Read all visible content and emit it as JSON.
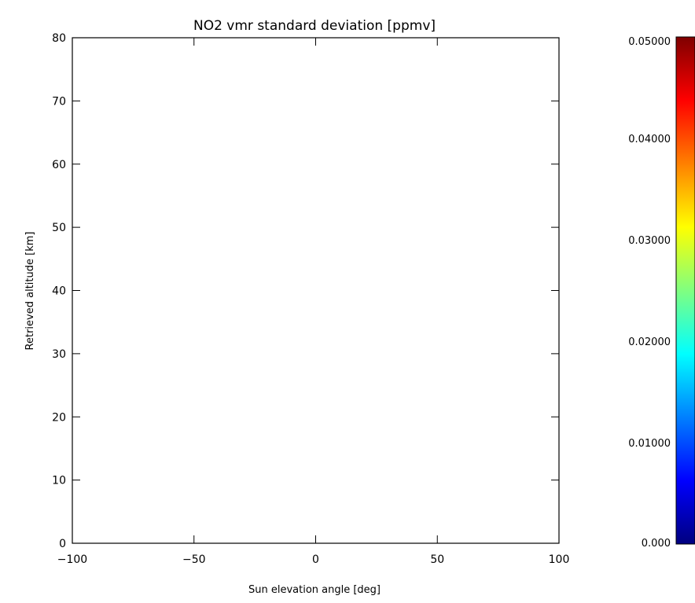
{
  "chart_data": {
    "type": "heatmap",
    "title": "NO2 vmr standard deviation [ppmv]",
    "xlabel": "Sun elevation angle [deg]",
    "ylabel": "Retrieved altitude [km]",
    "xlim": [
      -100,
      100
    ],
    "ylim": [
      0,
      80
    ],
    "xticks": [
      -100,
      -50,
      0,
      50,
      100
    ],
    "xtick_labels": [
      "−100",
      "−50",
      "0",
      "50",
      "100"
    ],
    "yticks": [
      0,
      10,
      20,
      30,
      40,
      50,
      60,
      70,
      80
    ],
    "ytick_labels": [
      "0",
      "10",
      "20",
      "30",
      "40",
      "50",
      "60",
      "70",
      "80"
    ],
    "values": [],
    "grid": false,
    "colorbar": {
      "range": [
        0,
        0.05
      ],
      "ticks": [
        0,
        0.01,
        0.02,
        0.03,
        0.04,
        0.05
      ],
      "tick_labels": [
        "0.000",
        "0.01000",
        "0.02000",
        "0.03000",
        "0.04000",
        "0.05000"
      ],
      "colormap": [
        "#00007f",
        "#0000ff",
        "#0080ff",
        "#00ffff",
        "#80ff80",
        "#ffff00",
        "#ff8000",
        "#ff0000",
        "#7f0000"
      ]
    }
  }
}
